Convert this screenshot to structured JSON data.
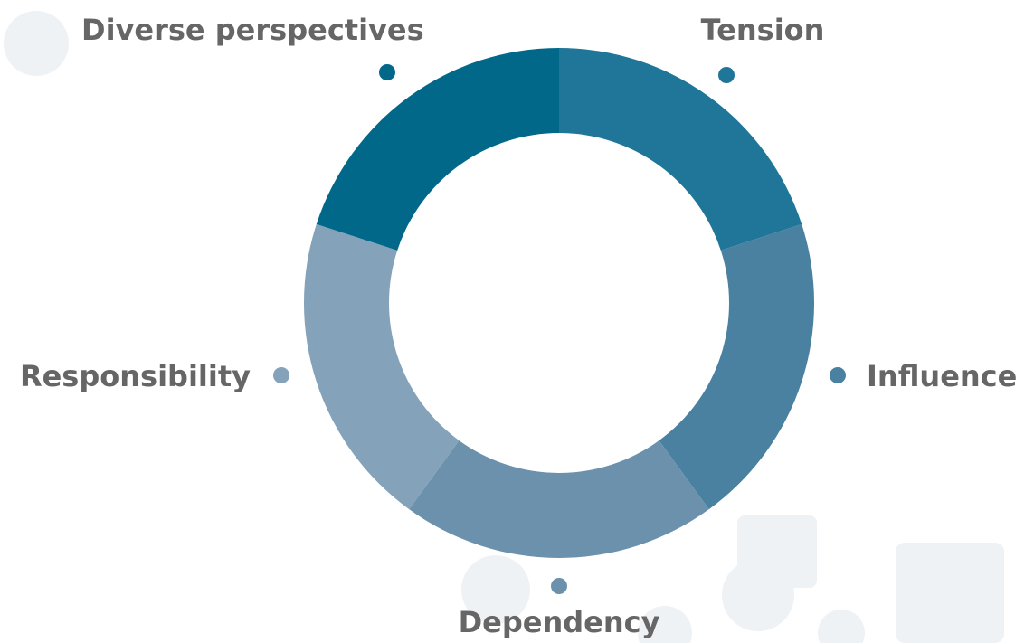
{
  "chart_data": {
    "type": "donut",
    "categories": [
      "Tension",
      "Influence",
      "Dependency",
      "Responsibility",
      "Diverse perspectives"
    ],
    "values": [
      20,
      20,
      20,
      20,
      20
    ],
    "colors": [
      "#1f7698",
      "#4a81a0",
      "#6b91ad",
      "#84a2b9",
      "#01688a"
    ]
  }
}
